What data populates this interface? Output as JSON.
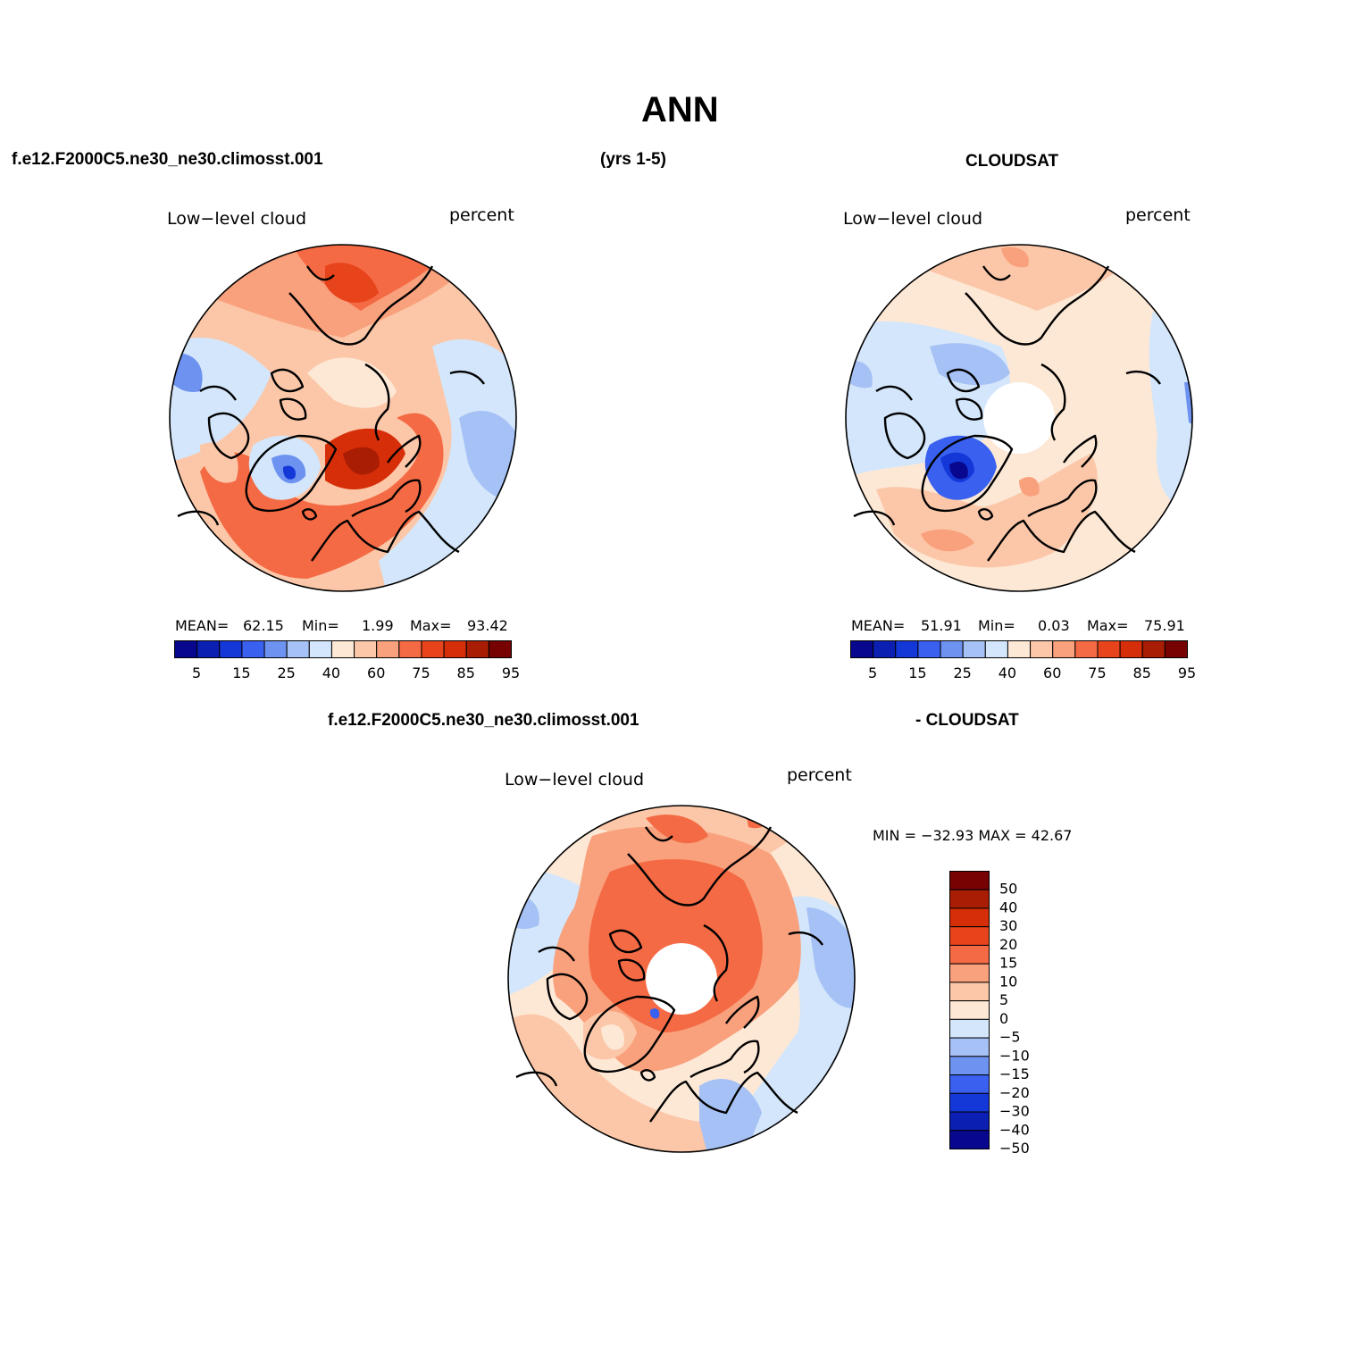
{
  "figure": {
    "title": "ANN",
    "case_name": "f.e12.F2000C5.ne30_ne30.climosst.001",
    "years": "(yrs 1-5)",
    "obs_name": "CLOUDSAT",
    "diff_case": "f.e12.F2000C5.ne30_ne30.climosst.001",
    "diff_obs": "- CLOUDSAT"
  },
  "panels": {
    "model": {
      "variable": "Low−level cloud",
      "units": "percent",
      "mean_label": "MEAN=",
      "mean": "62.15",
      "min_label": "Min=",
      "min": "1.99",
      "max_label": "Max=",
      "max": "93.42"
    },
    "obs": {
      "variable": "Low−level cloud",
      "units": "percent",
      "mean_label": "MEAN=",
      "mean": "51.91",
      "min_label": "Min=",
      "min": "0.03",
      "max_label": "Max=",
      "max": "75.91"
    },
    "diff": {
      "variable": "Low−level cloud",
      "units": "percent",
      "minmax": "MIN = −32.93  MAX =   42.67"
    }
  },
  "colorbar_abs": {
    "colors": [
      "#08088f",
      "#0b20b2",
      "#1438d8",
      "#3a60f0",
      "#6e92f0",
      "#a6c1f5",
      "#d3e6fb",
      "#fde8d6",
      "#fcc7a8",
      "#f9a07c",
      "#f46a44",
      "#e8441c",
      "#d52e08",
      "#a91d04",
      "#770202"
    ],
    "labels": [
      "5",
      "15",
      "25",
      "40",
      "60",
      "75",
      "85",
      "95"
    ]
  },
  "colorbar_diff": {
    "colors": [
      "#770202",
      "#a91d04",
      "#d52e08",
      "#e8441c",
      "#f46a44",
      "#f9a07c",
      "#fcc7a8",
      "#fde8d6",
      "#d3e6fb",
      "#a6c1f5",
      "#6e92f0",
      "#3a60f0",
      "#1438d8",
      "#0b20b2",
      "#08088f"
    ],
    "labels": [
      "50",
      "40",
      "30",
      "20",
      "15",
      "10",
      "5",
      "0",
      "−5",
      "−10",
      "−15",
      "−20",
      "−30",
      "−40",
      "−50"
    ]
  },
  "chart_data": {
    "type": "heatmap",
    "projection": "north polar stereographic",
    "title": "ANN",
    "panels": [
      {
        "name": "f.e12.F2000C5.ne30_ne30.climosst.001",
        "variable": "Low−level cloud",
        "units": "percent",
        "mean": 62.15,
        "min": 1.99,
        "max": 93.42
      },
      {
        "name": "CLOUDSAT",
        "variable": "Low−level cloud",
        "units": "percent",
        "mean": 51.91,
        "min": 0.03,
        "max": 75.91
      },
      {
        "name": "f.e12.F2000C5.ne30_ne30.climosst.001 - CLOUDSAT",
        "variable": "Low−level cloud",
        "units": "percent",
        "min": -32.93,
        "max": 42.67
      }
    ],
    "abs_levels": [
      5,
      15,
      25,
      40,
      60,
      75,
      85,
      95
    ],
    "diff_levels": [
      -50,
      -40,
      -30,
      -20,
      -15,
      -10,
      -5,
      0,
      5,
      10,
      15,
      20,
      30,
      40,
      50
    ]
  }
}
